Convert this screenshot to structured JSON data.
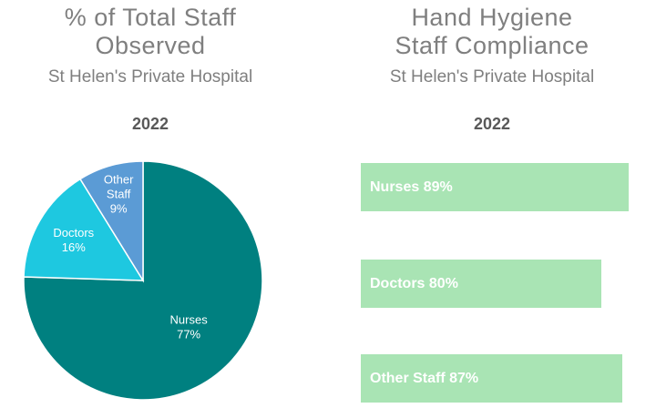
{
  "chart_data": [
    {
      "type": "pie",
      "title": "% of Total Staff Observed",
      "subtitle": "St Helen's Private Hospital",
      "year": "2022",
      "categories": [
        "Nurses",
        "Doctors",
        "Other Staff"
      ],
      "values": [
        77,
        16,
        9
      ],
      "colors": [
        "#008080",
        "#1ec8e0",
        "#5b9bd5"
      ],
      "labels": [
        {
          "lines": [
            "Nurses",
            "77%"
          ]
        },
        {
          "lines": [
            "Doctors",
            "16%"
          ]
        },
        {
          "lines": [
            "Other",
            "Staff",
            "9%"
          ]
        }
      ]
    },
    {
      "type": "bar",
      "orientation": "horizontal",
      "title": "Hand Hygiene Staff Compliance",
      "subtitle": "St Helen's Private Hospital",
      "year": "2022",
      "categories": [
        "Nurses",
        "Doctors",
        "Other Staff"
      ],
      "values": [
        89,
        80,
        87
      ],
      "labels": [
        "Nurses 89%",
        "Doctors 80%",
        "Other Staff 87%"
      ],
      "color": "#a9e4b4",
      "xlim": [
        0,
        100
      ]
    }
  ]
}
